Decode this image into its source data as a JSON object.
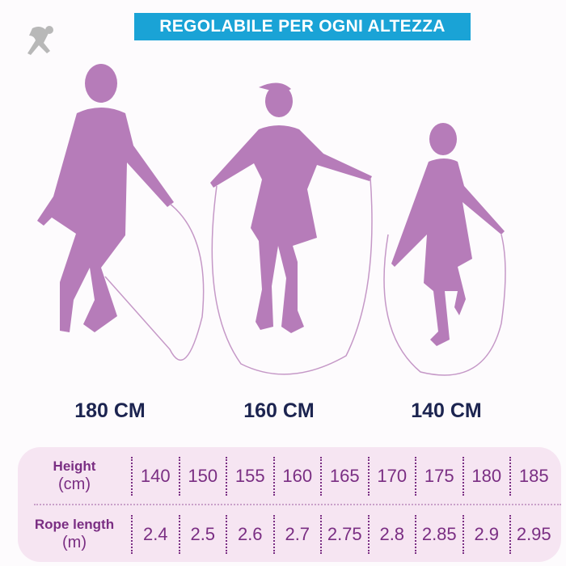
{
  "banner": {
    "title": "REGOLABILE PER OGNI ALTEZZA"
  },
  "figures": [
    {
      "label": "180 CM"
    },
    {
      "label": "160 CM"
    },
    {
      "label": "140 CM"
    }
  ],
  "table": {
    "rows": [
      {
        "label": "Height",
        "unit": "(cm)",
        "cells": [
          "140",
          "150",
          "155",
          "160",
          "165",
          "170",
          "175",
          "180",
          "185"
        ]
      },
      {
        "label": "Rope length",
        "unit": "(m)",
        "cells": [
          "2.4",
          "2.5",
          "2.6",
          "2.7",
          "2.75",
          "2.8",
          "2.85",
          "2.9",
          "2.95"
        ]
      }
    ]
  }
}
